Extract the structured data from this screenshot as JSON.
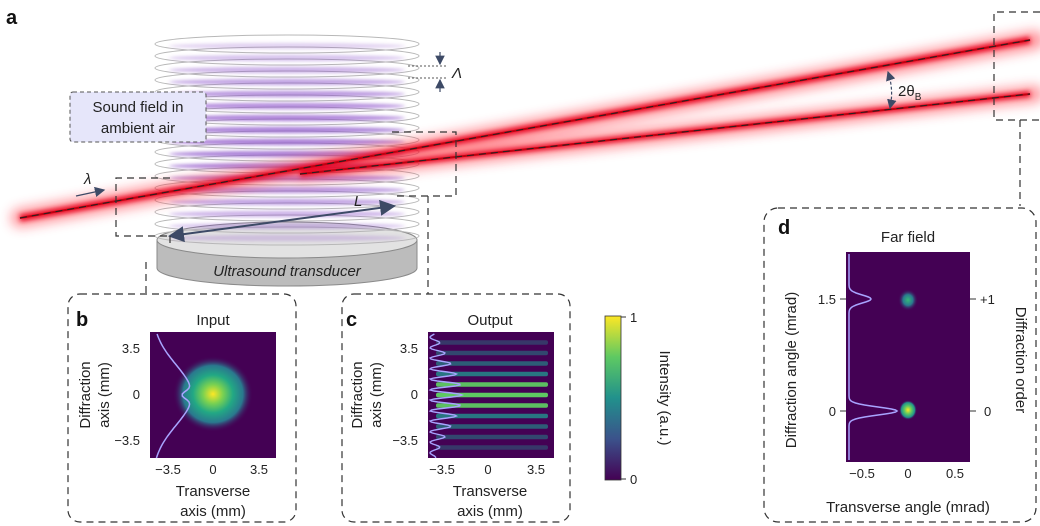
{
  "panels": {
    "a": {
      "letter": "a",
      "sound_label_line1": "Sound field in",
      "sound_label_line2": "ambient air",
      "transducer_label": "Ultrasound transducer",
      "lambda_symbol": "λ",
      "Lambda_symbol": "Λ",
      "length_symbol": "L",
      "bragg_label": "2θ",
      "bragg_subscript": "B"
    },
    "b": {
      "letter": "b",
      "title": "Input",
      "ylabel_line1": "Diffraction",
      "ylabel_line2": "axis (mm)",
      "xlabel_line1": "Transverse",
      "xlabel_line2": "axis (mm)",
      "yticks": [
        "3.5",
        "0",
        "−3.5"
      ],
      "xticks": [
        "−3.5",
        "0",
        "3.5"
      ]
    },
    "c": {
      "letter": "c",
      "title": "Output",
      "ylabel_line1": "Diffraction",
      "ylabel_line2": "axis (mm)",
      "xlabel_line1": "Transverse",
      "xlabel_line2": "axis (mm)",
      "yticks": [
        "3.5",
        "0",
        "−3.5"
      ],
      "xticks": [
        "−3.5",
        "0",
        "3.5"
      ]
    },
    "colorbar": {
      "label": "Intensity (a.u.)",
      "tick_max": "1",
      "tick_min": "0",
      "colors": [
        "#440154",
        "#3b528b",
        "#21918c",
        "#5ec962",
        "#fde725"
      ]
    },
    "d": {
      "letter": "d",
      "title": "Far field",
      "ylabel": "Diffraction angle (mrad)",
      "xlabel": "Transverse angle (mrad)",
      "right_label": "Diffraction order",
      "yticks": [
        "1.5",
        "0"
      ],
      "xticks": [
        "−0.5",
        "0",
        "0.5"
      ],
      "right_ticks": [
        "+1",
        "0"
      ]
    }
  },
  "colors": {
    "laser": "#e8001c",
    "sound": "#8a4fc9",
    "ring": "#b8b8b8",
    "map_background": "#440154",
    "profile_line": "#a8a4ff",
    "label_box_fill": "#e6e6fa",
    "transducer_side": "#bcbcbc",
    "transducer_top": "#e2e2e2"
  }
}
